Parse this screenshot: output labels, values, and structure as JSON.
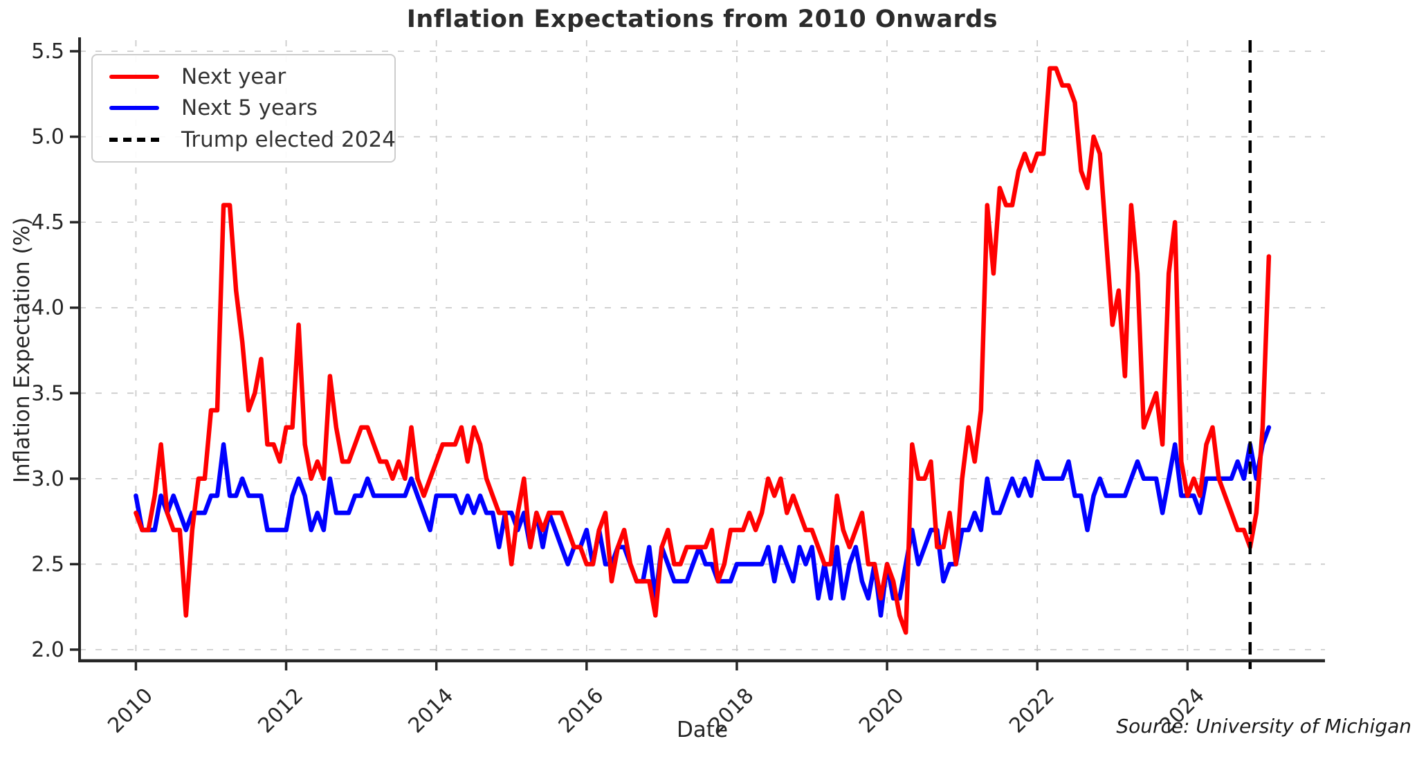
{
  "title": "Inflation Expectations from 2010 Onwards",
  "axis": {
    "x_label": "Date",
    "y_label": "Inflation Expectation (%)"
  },
  "source_note": "Source: University of Michigan",
  "legend": {
    "position": "upper left",
    "items": [
      {
        "label": "Next year",
        "color": "#ff0000",
        "style": "solid"
      },
      {
        "label": "Next 5 years",
        "color": "#0000ff",
        "style": "solid"
      },
      {
        "label": "Trump elected 2024",
        "color": "#000000",
        "style": "dashed"
      }
    ]
  },
  "colors": {
    "next_year_line": "#ff0000",
    "next_5_years_line": "#0000ff",
    "annotation_line": "#000000",
    "grid": "#c9c9c9",
    "spine": "#262626",
    "text": "#262626"
  },
  "chart_data": {
    "type": "line",
    "title": "Inflation Expectations from 2010 Onwards",
    "xlabel": "Date",
    "ylabel": "Inflation Expectation (%)",
    "x_unit": "month",
    "x_start": "2010-01",
    "x_end": "2025-02",
    "x_ticks": [
      2010,
      2012,
      2014,
      2016,
      2018,
      2020,
      2022,
      2024
    ],
    "y_ticks": [
      "2.0",
      "2.5",
      "3.0",
      "3.5",
      "4.0",
      "4.5",
      "5.0",
      "5.5"
    ],
    "xlim_years": [
      2009.25,
      2025.83
    ],
    "ylim": [
      1.935,
      5.565
    ],
    "grid": true,
    "annotation": {
      "label": "Trump elected 2024",
      "date": "2024-11",
      "style": "dashed-vertical"
    },
    "series": [
      {
        "name": "Next year",
        "color": "#ff0000",
        "values": [
          2.8,
          2.7,
          2.7,
          2.9,
          3.2,
          2.8,
          2.7,
          2.7,
          2.2,
          2.7,
          3.0,
          3.0,
          3.4,
          3.4,
          4.6,
          4.6,
          4.1,
          3.8,
          3.4,
          3.5,
          3.7,
          3.2,
          3.2,
          3.1,
          3.3,
          3.3,
          3.9,
          3.2,
          3.0,
          3.1,
          3.0,
          3.6,
          3.3,
          3.1,
          3.1,
          3.2,
          3.3,
          3.3,
          3.2,
          3.1,
          3.1,
          3.0,
          3.1,
          3.0,
          3.3,
          3.0,
          2.9,
          3.0,
          3.1,
          3.2,
          3.2,
          3.2,
          3.3,
          3.1,
          3.3,
          3.2,
          3.0,
          2.9,
          2.8,
          2.8,
          2.5,
          2.8,
          3.0,
          2.6,
          2.8,
          2.7,
          2.8,
          2.8,
          2.8,
          2.7,
          2.6,
          2.6,
          2.5,
          2.5,
          2.7,
          2.8,
          2.4,
          2.6,
          2.7,
          2.5,
          2.4,
          2.4,
          2.4,
          2.2,
          2.6,
          2.7,
          2.5,
          2.5,
          2.6,
          2.6,
          2.6,
          2.6,
          2.7,
          2.4,
          2.5,
          2.7,
          2.7,
          2.7,
          2.8,
          2.7,
          2.8,
          3.0,
          2.9,
          3.0,
          2.8,
          2.9,
          2.8,
          2.7,
          2.7,
          2.6,
          2.5,
          2.5,
          2.9,
          2.7,
          2.6,
          2.7,
          2.8,
          2.5,
          2.5,
          2.3,
          2.5,
          2.4,
          2.2,
          2.1,
          3.2,
          3.0,
          3.0,
          3.1,
          2.6,
          2.6,
          2.8,
          2.5,
          3.0,
          3.3,
          3.1,
          3.4,
          4.6,
          4.2,
          4.7,
          4.6,
          4.6,
          4.8,
          4.9,
          4.8,
          4.9,
          4.9,
          5.4,
          5.4,
          5.3,
          5.3,
          5.2,
          4.8,
          4.7,
          5.0,
          4.9,
          4.4,
          3.9,
          4.1,
          3.6,
          4.6,
          4.2,
          3.3,
          3.4,
          3.5,
          3.2,
          4.2,
          4.5,
          3.1,
          2.9,
          3.0,
          2.9,
          3.2,
          3.3,
          3.0,
          2.9,
          2.8,
          2.7,
          2.7,
          2.6,
          2.8,
          3.3,
          4.3
        ]
      },
      {
        "name": "Next 5 years",
        "color": "#0000ff",
        "values": [
          2.9,
          2.7,
          2.7,
          2.7,
          2.9,
          2.8,
          2.9,
          2.8,
          2.7,
          2.8,
          2.8,
          2.8,
          2.9,
          2.9,
          3.2,
          2.9,
          2.9,
          3.0,
          2.9,
          2.9,
          2.9,
          2.7,
          2.7,
          2.7,
          2.7,
          2.9,
          3.0,
          2.9,
          2.7,
          2.8,
          2.7,
          3.0,
          2.8,
          2.8,
          2.8,
          2.9,
          2.9,
          3.0,
          2.9,
          2.9,
          2.9,
          2.9,
          2.9,
          2.9,
          3.0,
          2.9,
          2.8,
          2.7,
          2.9,
          2.9,
          2.9,
          2.9,
          2.8,
          2.9,
          2.8,
          2.9,
          2.8,
          2.8,
          2.6,
          2.8,
          2.8,
          2.7,
          2.8,
          2.6,
          2.8,
          2.6,
          2.8,
          2.7,
          2.6,
          2.5,
          2.6,
          2.6,
          2.7,
          2.5,
          2.7,
          2.5,
          2.5,
          2.6,
          2.6,
          2.5,
          2.4,
          2.4,
          2.6,
          2.3,
          2.6,
          2.5,
          2.4,
          2.4,
          2.4,
          2.5,
          2.6,
          2.5,
          2.5,
          2.4,
          2.4,
          2.4,
          2.5,
          2.5,
          2.5,
          2.5,
          2.5,
          2.6,
          2.4,
          2.6,
          2.5,
          2.4,
          2.6,
          2.5,
          2.6,
          2.3,
          2.5,
          2.3,
          2.6,
          2.3,
          2.5,
          2.6,
          2.4,
          2.3,
          2.5,
          2.2,
          2.5,
          2.3,
          2.3,
          2.5,
          2.7,
          2.5,
          2.6,
          2.7,
          2.7,
          2.4,
          2.5,
          2.5,
          2.7,
          2.7,
          2.8,
          2.7,
          3.0,
          2.8,
          2.8,
          2.9,
          3.0,
          2.9,
          3.0,
          2.9,
          3.1,
          3.0,
          3.0,
          3.0,
          3.0,
          3.1,
          2.9,
          2.9,
          2.7,
          2.9,
          3.0,
          2.9,
          2.9,
          2.9,
          2.9,
          3.0,
          3.1,
          3.0,
          3.0,
          3.0,
          2.8,
          3.0,
          3.2,
          2.9,
          2.9,
          2.9,
          2.8,
          3.0,
          3.0,
          3.0,
          3.0,
          3.0,
          3.1,
          3.0,
          3.2,
          3.0,
          3.2,
          3.3
        ]
      }
    ]
  }
}
